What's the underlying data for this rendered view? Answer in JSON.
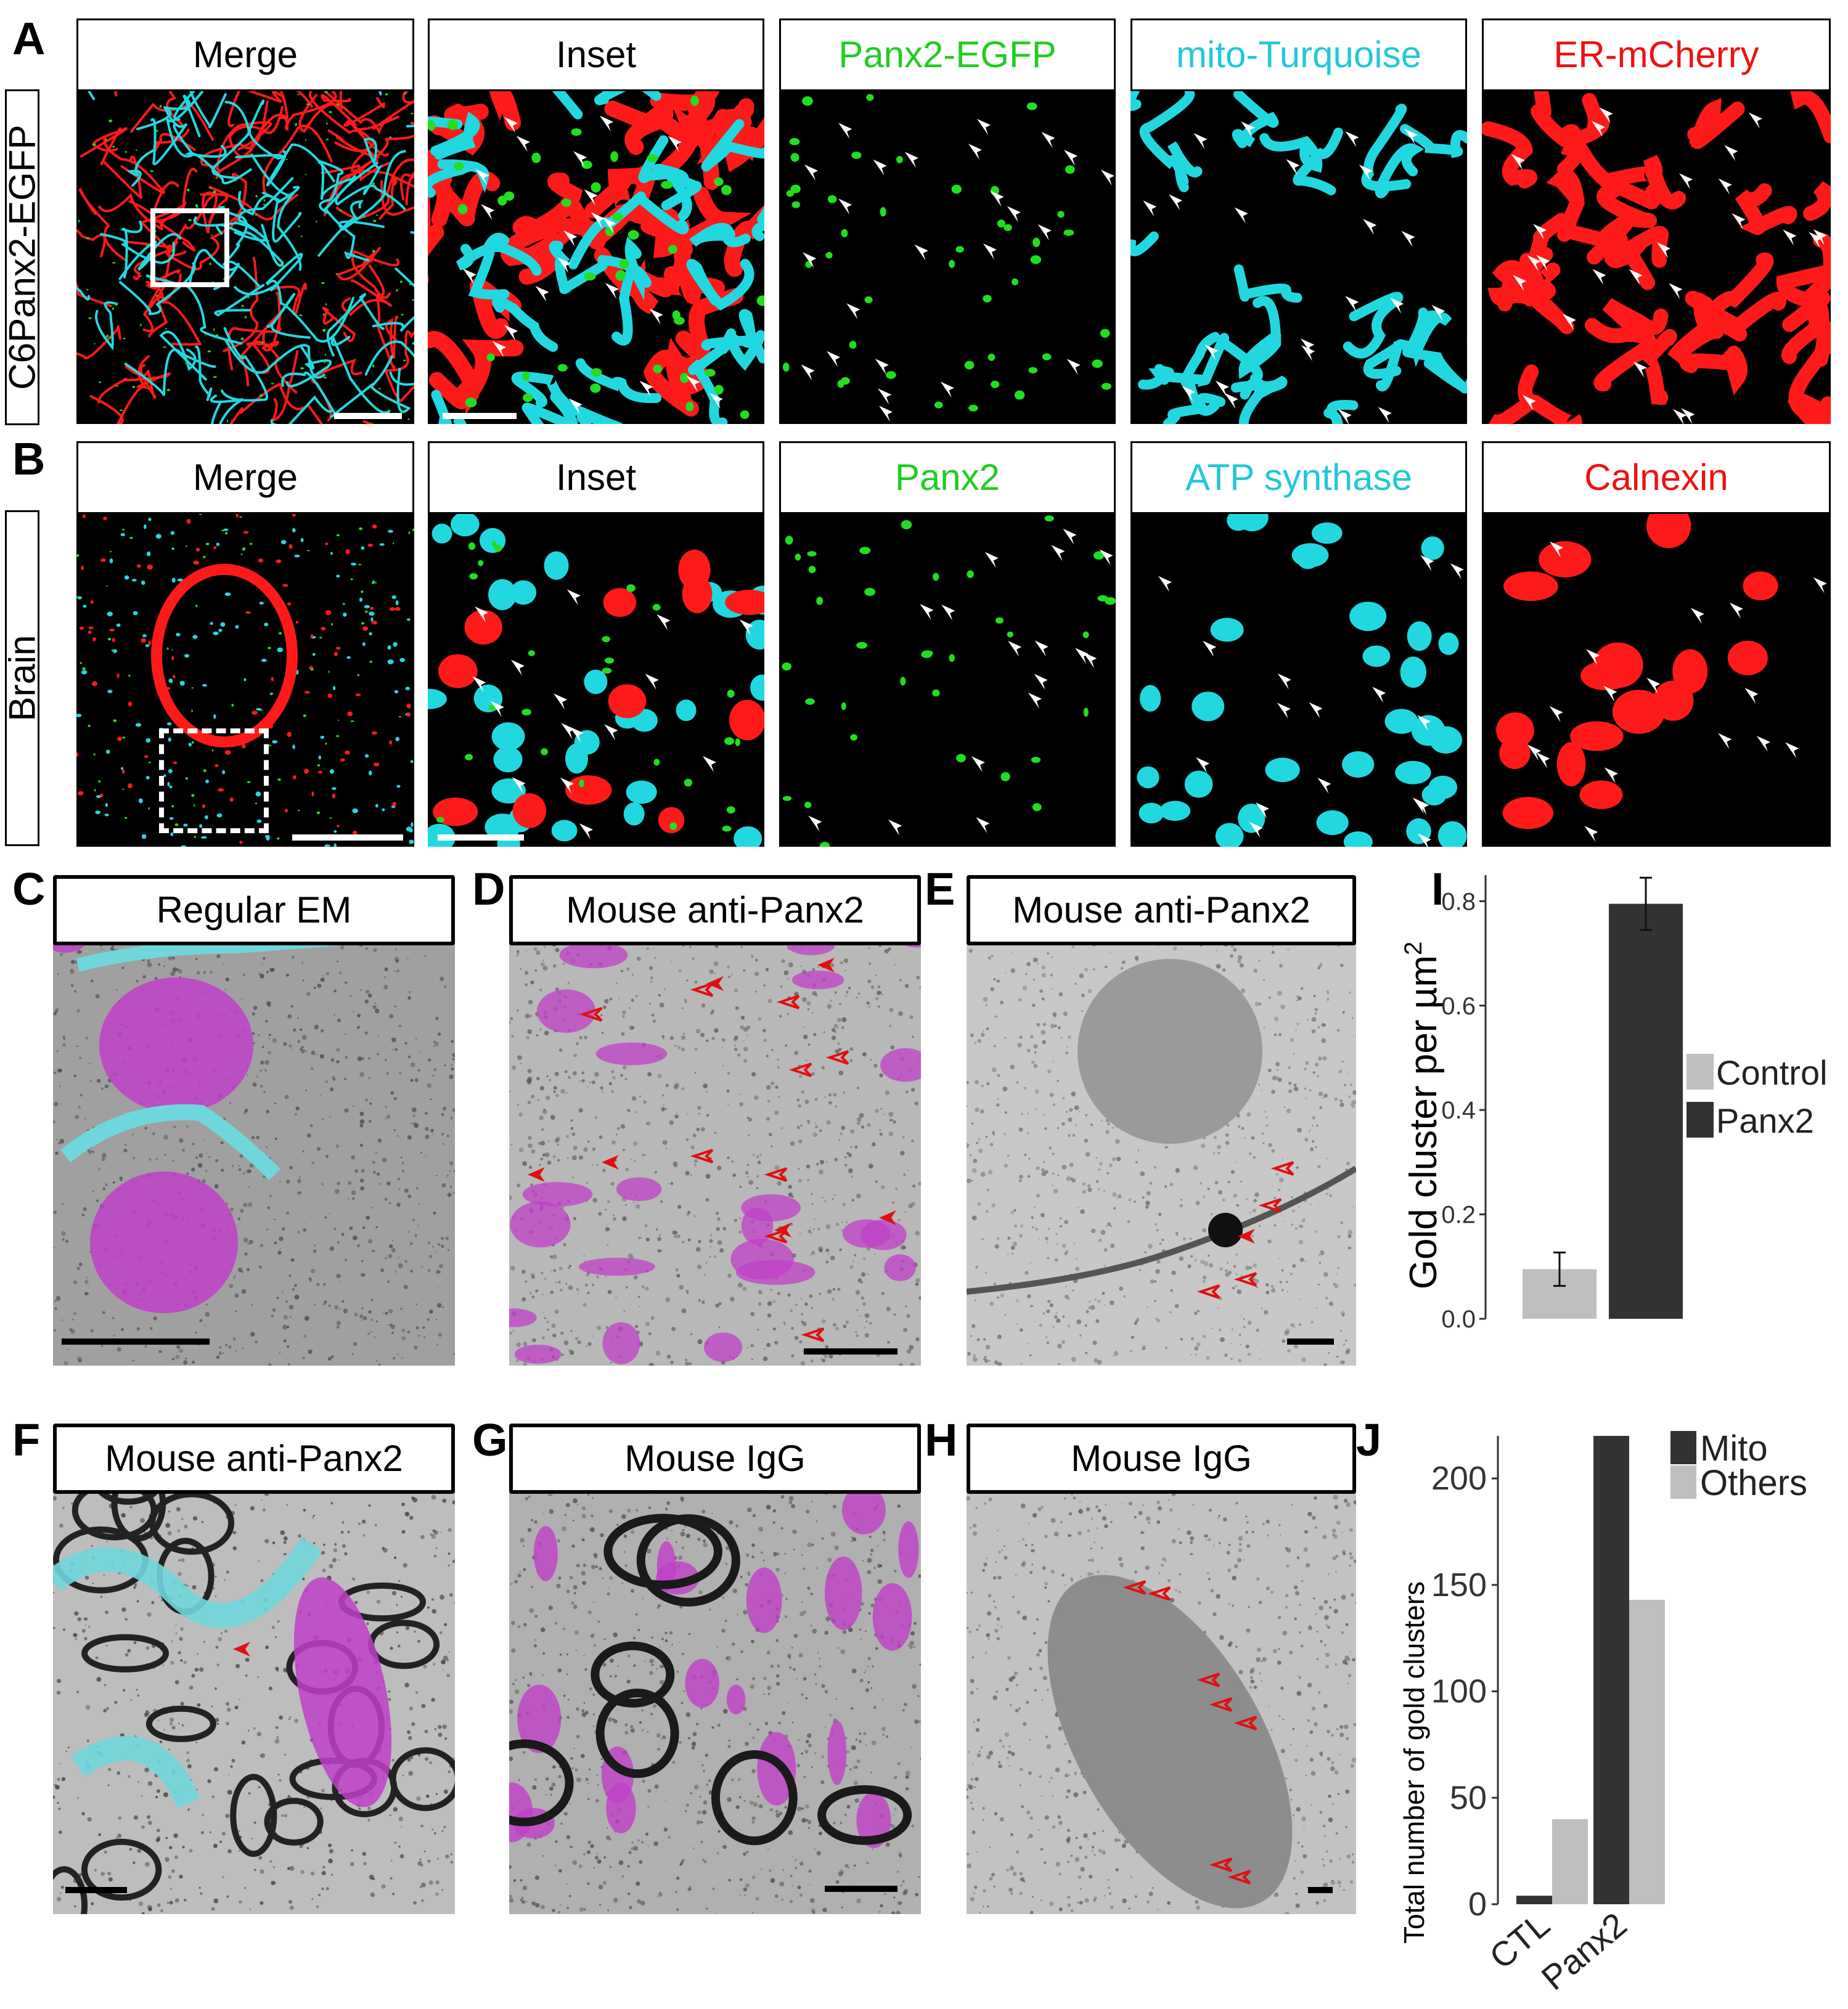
{
  "panels": {
    "A": {
      "letter": "A",
      "row_label": "C6Panx2-EGFP",
      "titles": [
        "Merge",
        "Inset",
        "Panx2-EGFP",
        "mito-Turquoise",
        "ER-mCherry"
      ]
    },
    "B": {
      "letter": "B",
      "row_label": "Brain",
      "titles": [
        "Merge",
        "Inset",
        "Panx2",
        "ATP synthase",
        "Calnexin"
      ]
    },
    "C": {
      "letter": "C",
      "title": "Regular EM"
    },
    "D": {
      "letter": "D",
      "title": "Mouse anti-Panx2"
    },
    "E": {
      "letter": "E",
      "title": "Mouse anti-Panx2"
    },
    "F": {
      "letter": "F",
      "title": "Mouse anti-Panx2"
    },
    "G": {
      "letter": "G",
      "title": "Mouse IgG"
    },
    "H": {
      "letter": "H",
      "title": "Mouse IgG"
    },
    "I": {
      "letter": "I"
    },
    "J": {
      "letter": "J"
    }
  },
  "colors": {
    "green": "#22dd22",
    "cyan": "#22d8e0",
    "red": "#ff1a1a",
    "magenta": "#c040c8",
    "em_cyan": "#6fd6dc",
    "arrow_red": "#e01010"
  },
  "chart_data": [
    {
      "id": "I",
      "type": "bar",
      "categories": [
        "Control",
        "Panx2"
      ],
      "values": [
        0.095,
        0.795
      ],
      "errors": [
        0.032,
        0.05
      ],
      "ylabel": "Gold cluster per µm",
      "ylabel_sup": "2",
      "ylim": [
        0,
        0.85
      ],
      "yticks": [
        "0.0",
        "0.2",
        "0.4",
        "0.6",
        "0.8"
      ],
      "legend": [
        "Control",
        "Panx2"
      ],
      "legend_position": "right",
      "colors": [
        "#bfbfbf",
        "#333333"
      ],
      "grid": false
    },
    {
      "id": "J",
      "type": "bar",
      "categories": [
        "CTL",
        "Panx2"
      ],
      "series": [
        {
          "name": "Mito",
          "values": [
            4,
            220
          ]
        },
        {
          "name": "Others",
          "values": [
            40,
            143
          ]
        }
      ],
      "ylabel": "Total number of gold clusters",
      "ylim": [
        0,
        220
      ],
      "yticks": [
        "0",
        "50",
        "100",
        "150",
        "200"
      ],
      "legend_position": "top-right",
      "colors": [
        "#333333",
        "#bfbfbf"
      ],
      "grid": false
    }
  ]
}
